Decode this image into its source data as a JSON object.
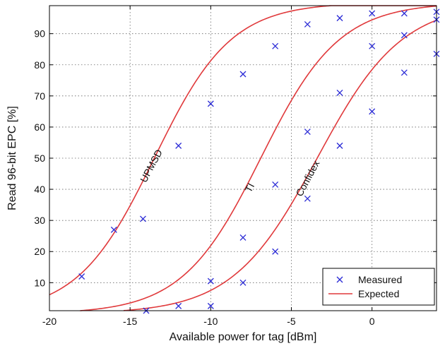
{
  "chart_data": {
    "type": "scatter",
    "xlabel": "Available power for tag [dBm]",
    "ylabel": "Read 96-bit EPC [%]",
    "xlim": [
      -20,
      4
    ],
    "ylim": [
      1,
      99
    ],
    "xticks": [
      -20,
      -15,
      -10,
      -5,
      0
    ],
    "yticks": [
      10,
      20,
      30,
      40,
      50,
      60,
      70,
      80,
      90
    ],
    "grid": true,
    "legend_position": "bottom-right",
    "legend": [
      {
        "label": "Measured",
        "marker": "x",
        "color": "#2b2bd6"
      },
      {
        "label": "Expected",
        "marker": "line",
        "color": "#e0393b"
      }
    ],
    "curve_labels": [
      {
        "text": "UPMSD",
        "x": -13.5,
        "y": 47
      },
      {
        "text": "TI",
        "x": -7.4,
        "y": 40
      },
      {
        "text": "Confidex",
        "x": -3.8,
        "y": 43
      }
    ],
    "series": [
      {
        "name": "UPMSD",
        "measured": [
          [
            -18,
            12
          ],
          [
            -16,
            27
          ],
          [
            -14.2,
            30.5
          ],
          [
            -12,
            54
          ],
          [
            -10,
            67.5
          ],
          [
            -8,
            77
          ],
          [
            -6,
            86
          ],
          [
            -4,
            93
          ],
          [
            -2,
            95
          ],
          [
            0,
            96.5
          ],
          [
            2,
            96.5
          ],
          [
            4,
            97
          ]
        ],
        "expected": {
          "midpoint": -13.5,
          "slope": 0.42
        }
      },
      {
        "name": "TI",
        "measured": [
          [
            -14,
            1
          ],
          [
            -12,
            2.5
          ],
          [
            -10,
            10.5
          ],
          [
            -8,
            24.5
          ],
          [
            -6,
            41.5
          ],
          [
            -4,
            58.5
          ],
          [
            -2,
            71
          ],
          [
            0,
            86
          ],
          [
            2,
            89.5
          ],
          [
            4,
            94.5
          ]
        ],
        "expected": {
          "midpoint": -6.9,
          "slope": 0.41
        }
      },
      {
        "name": "Confidex",
        "measured": [
          [
            -10,
            2.5
          ],
          [
            -8,
            10
          ],
          [
            -6,
            20
          ],
          [
            -4,
            37
          ],
          [
            -2,
            54
          ],
          [
            0,
            65
          ],
          [
            2,
            77.5
          ],
          [
            4,
            83.5
          ]
        ],
        "expected": {
          "midpoint": -3.4,
          "slope": 0.38
        }
      }
    ],
    "colors": {
      "measured": "#2b2bd6",
      "expected": "#e0393b",
      "grid": "#666666",
      "axis": "#000000"
    }
  }
}
